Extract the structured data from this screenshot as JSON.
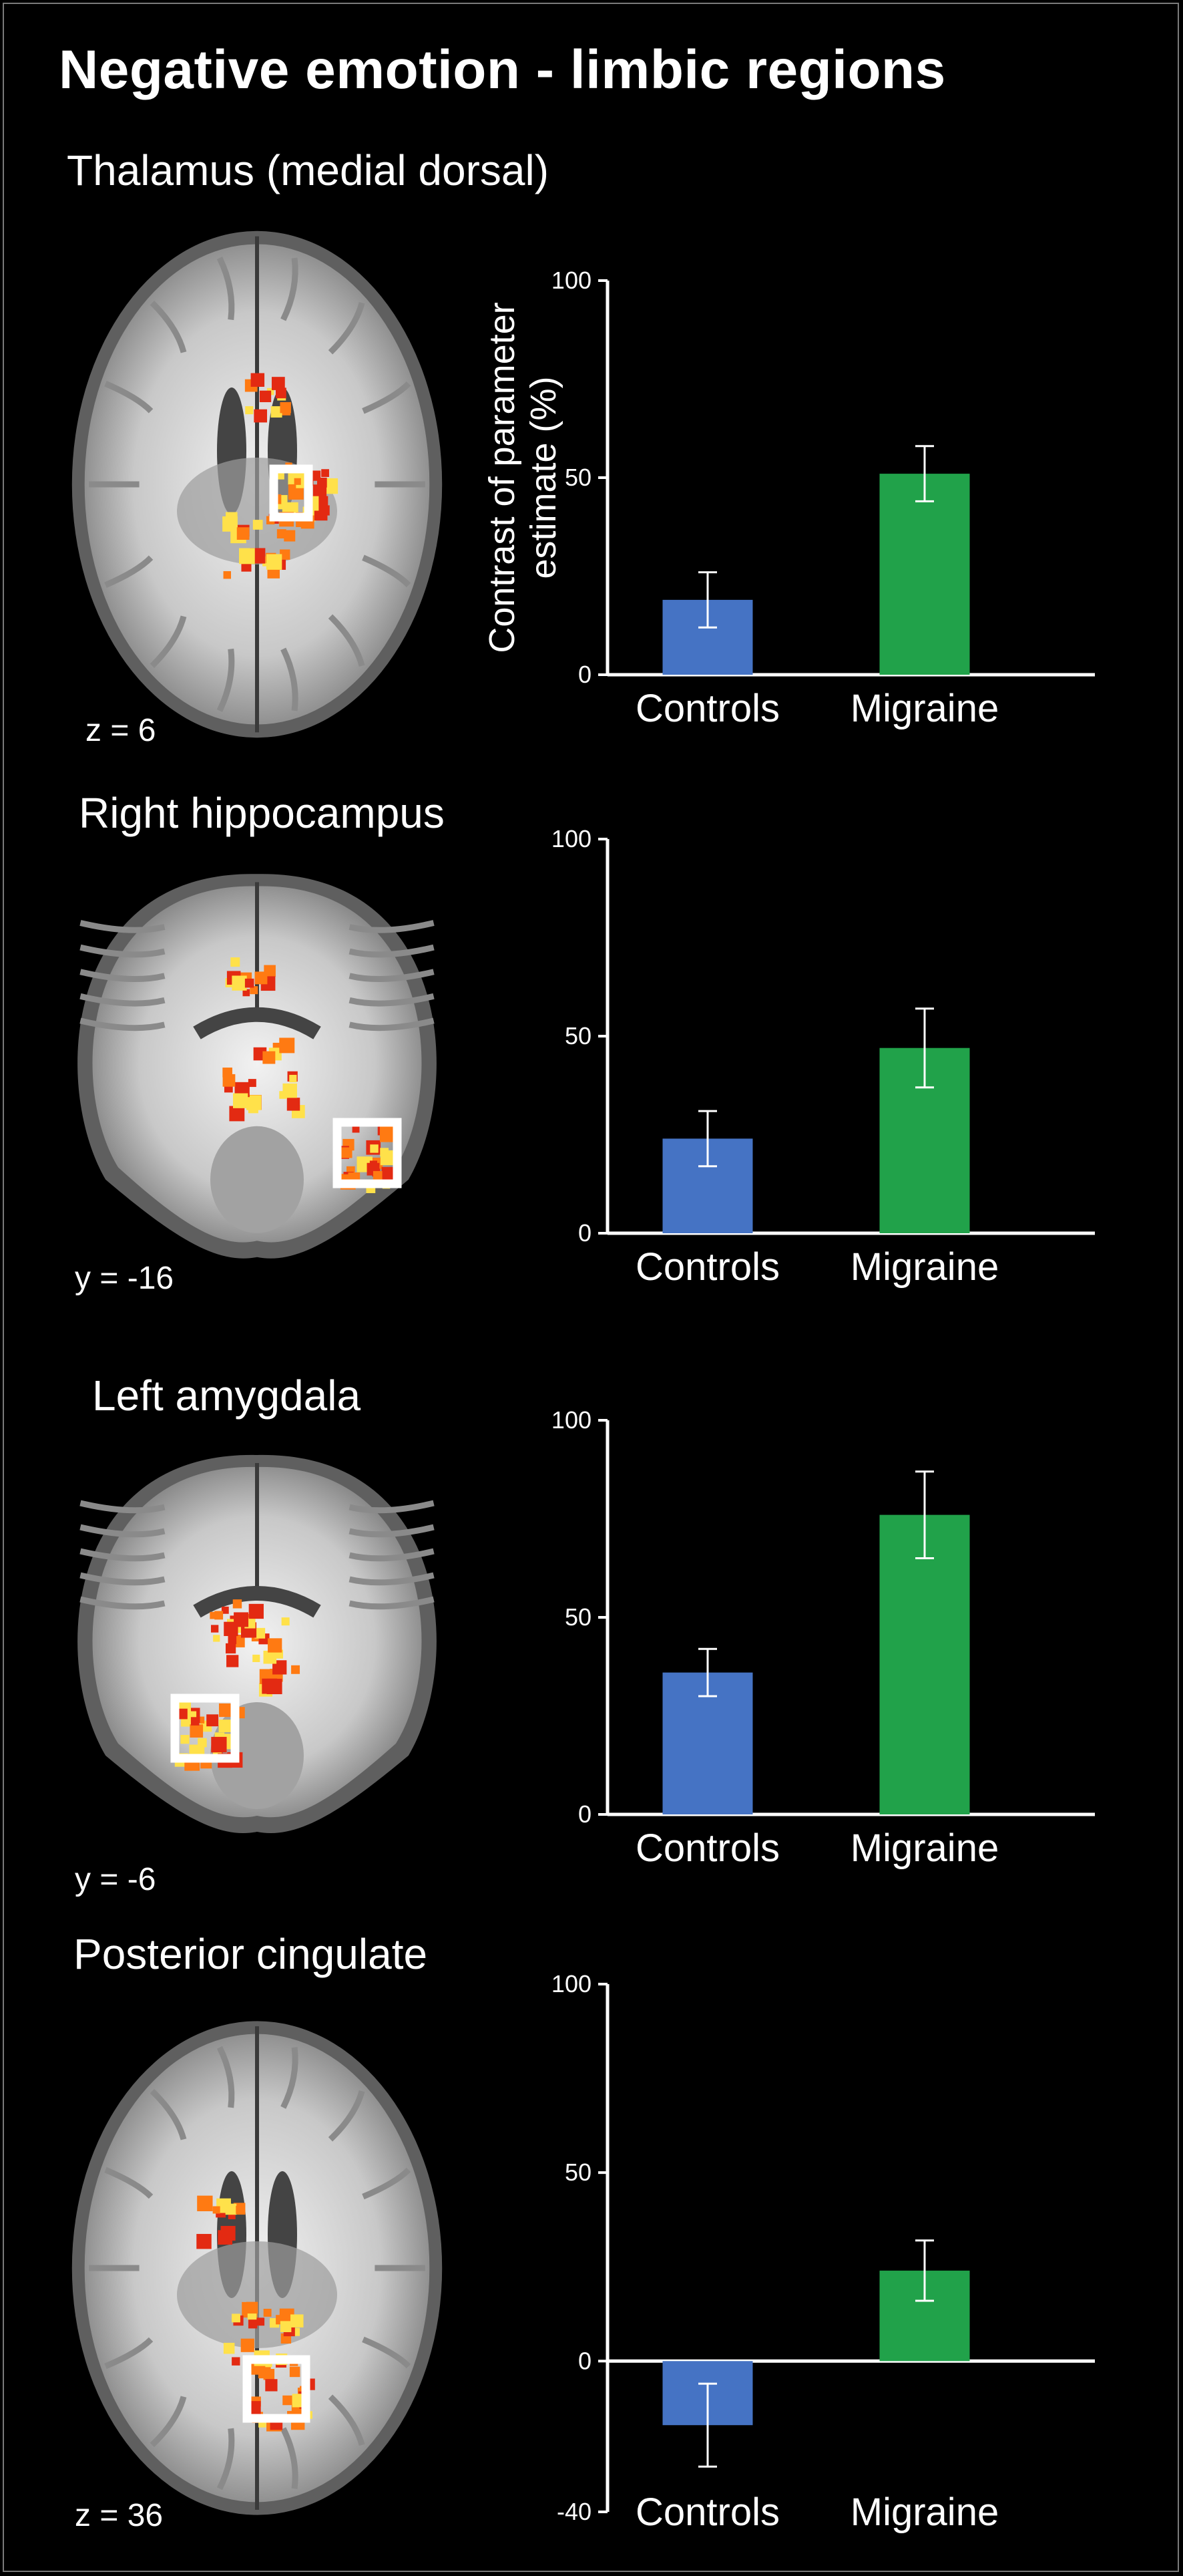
{
  "title": "Negative emotion - limbic regions",
  "colors": {
    "background": "#000000",
    "controls": "#4573c4",
    "migraine": "#21a24a",
    "highlight_box": "#ffffff",
    "activation_hot": "#ffe14a",
    "activation_mid": "#ff7a12",
    "activation_low": "#e32a12"
  },
  "panels": [
    {
      "region": "Thalamus (medial dorsal)",
      "slice_label": "z = 6",
      "view": "axial",
      "ylabel": "Contrast of parameter estimate (%)"
    },
    {
      "region": "Right hippocampus",
      "slice_label": "y = -16",
      "view": "coronal",
      "ylabel": ""
    },
    {
      "region": "Left amygdala",
      "slice_label": "y = -6",
      "view": "coronal",
      "ylabel": ""
    },
    {
      "region": "Posterior cingulate",
      "slice_label": "z = 36",
      "view": "axial",
      "ylabel": ""
    }
  ],
  "chart_data": [
    {
      "type": "bar",
      "title": "Thalamus (medial dorsal)",
      "categories": [
        "Controls",
        "Migraine"
      ],
      "values": [
        19,
        51
      ],
      "errors": [
        7,
        7
      ],
      "ylabel": "Contrast of parameter estimate (%)",
      "ylim": [
        0,
        100
      ],
      "yticks": [
        "0",
        "50",
        "100"
      ],
      "grid": false
    },
    {
      "type": "bar",
      "title": "Right hippocampus",
      "categories": [
        "Controls",
        "Migraine"
      ],
      "values": [
        24,
        47
      ],
      "errors": [
        7,
        10
      ],
      "ylabel": "",
      "ylim": [
        0,
        100
      ],
      "yticks": [
        "0",
        "50",
        "100"
      ],
      "grid": false
    },
    {
      "type": "bar",
      "title": "Left amygdala",
      "categories": [
        "Controls",
        "Migraine"
      ],
      "values": [
        36,
        76
      ],
      "errors": [
        6,
        11
      ],
      "ylabel": "",
      "ylim": [
        0,
        100
      ],
      "yticks": [
        "0",
        "50",
        "100"
      ],
      "grid": false
    },
    {
      "type": "bar",
      "title": "Posterior cingulate",
      "categories": [
        "Controls",
        "Migraine"
      ],
      "values": [
        -17,
        24
      ],
      "errors": [
        11,
        8
      ],
      "ylabel": "",
      "ylim": [
        -40,
        100
      ],
      "yticks": [
        "-40",
        "0",
        "50",
        "100"
      ],
      "grid": false
    }
  ]
}
